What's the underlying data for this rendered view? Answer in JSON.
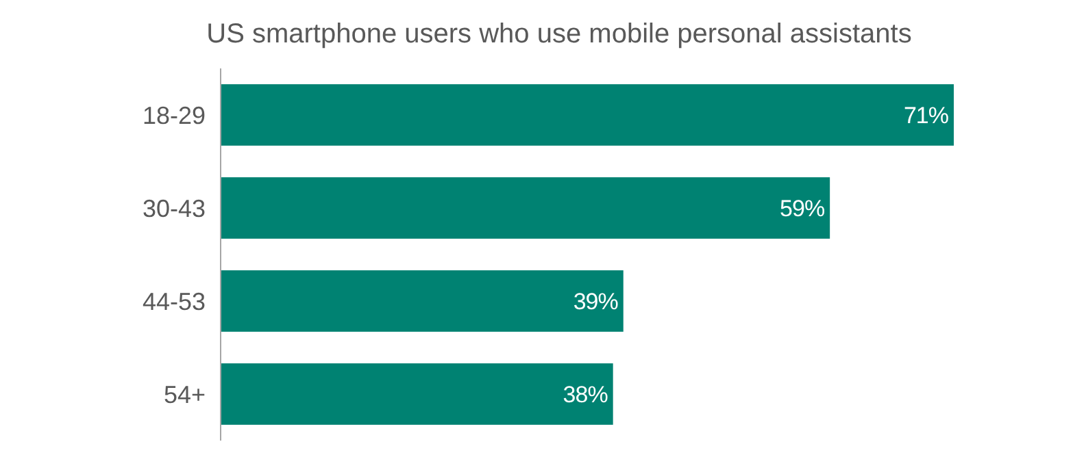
{
  "chart_data": {
    "type": "bar",
    "orientation": "horizontal",
    "title": "US smartphone users who use mobile personal assistants",
    "categories": [
      "18-29",
      "30-43",
      "44-53",
      "54+"
    ],
    "values": [
      71,
      59,
      39,
      38
    ],
    "color": "#008272",
    "value_labels": [
      "71%",
      "59%",
      "39%",
      "38%"
    ]
  }
}
